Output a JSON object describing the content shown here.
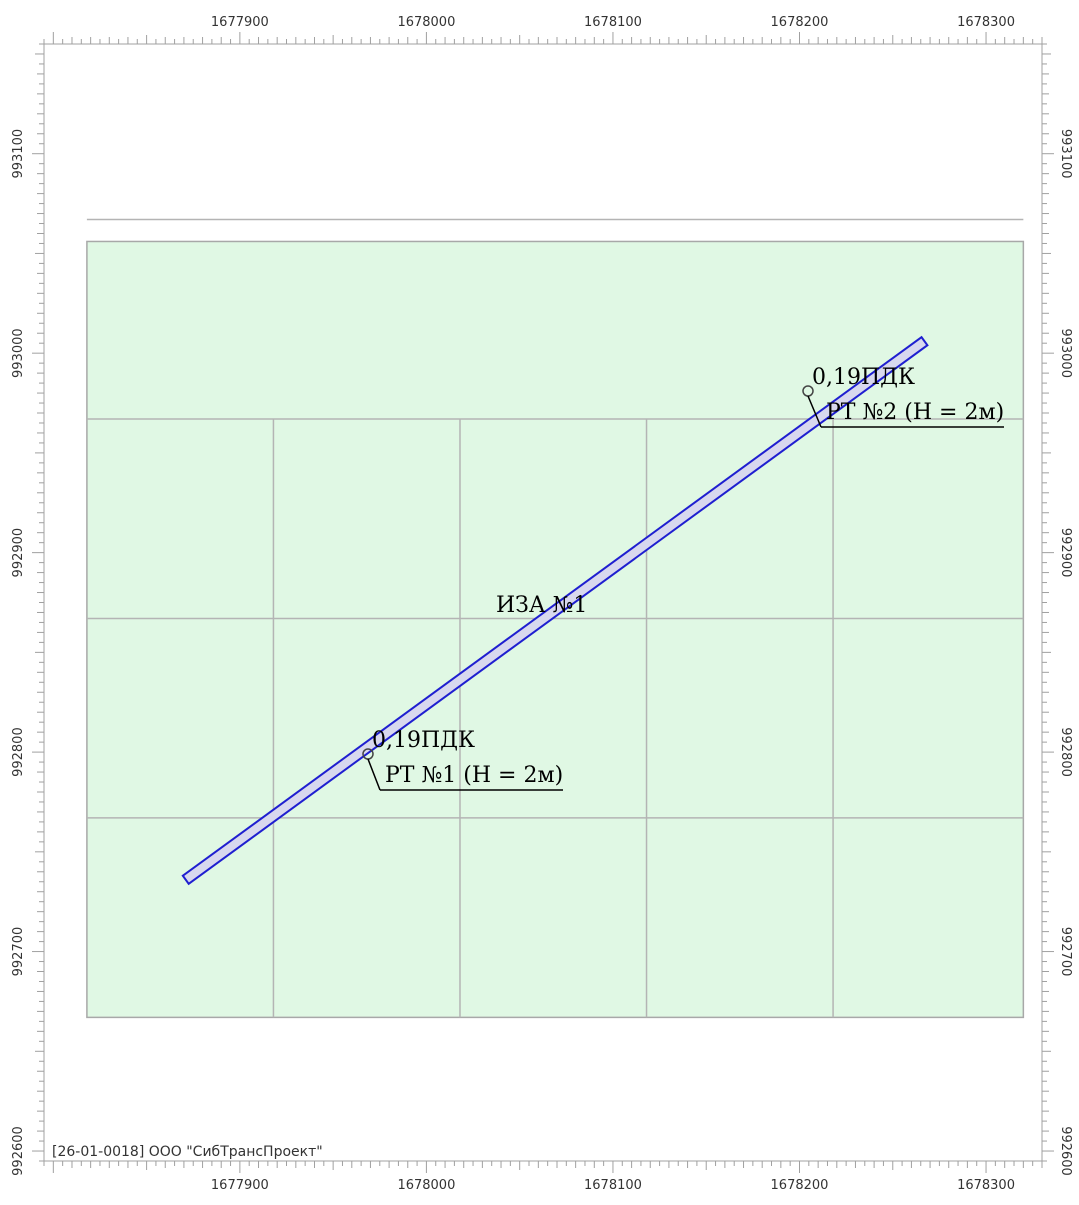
{
  "map": {
    "x_range": [
      1677795,
      1678330
    ],
    "y_range": [
      992595,
      993155
    ],
    "x_ticks": [
      {
        "value": 1677900,
        "label": "1677900"
      },
      {
        "value": 1678000,
        "label": "1678000"
      },
      {
        "value": 1678100,
        "label": "1678100"
      },
      {
        "value": 1678200,
        "label": "1678200"
      },
      {
        "value": 1678300,
        "label": "1678300"
      }
    ],
    "y_ticks": [
      {
        "value": 993100,
        "label": "993100"
      },
      {
        "value": 993000,
        "label": "993000"
      },
      {
        "value": 992900,
        "label": "992900"
      },
      {
        "value": 992800,
        "label": "992800"
      },
      {
        "value": 992700,
        "label": "992700"
      },
      {
        "value": 992600,
        "label": "992600"
      }
    ],
    "calc_area": {
      "x_min": 1677818,
      "x_max": 1678320,
      "y_min": 992667,
      "y_max": 993056,
      "grid_x": [
        1677918,
        1678018,
        1678118,
        1678218
      ],
      "grid_y": [
        992967,
        992867,
        992767
      ]
    },
    "source": {
      "label": "ИЗА №1",
      "label_point": [
        1678057,
        992862
      ],
      "start": [
        1677871,
        992736
      ],
      "end": [
        1678267,
        993006
      ],
      "half_width": 2.5
    },
    "points": [
      {
        "id": 1,
        "value_label": "0,19ПДК",
        "name_label": "РТ №1 (H = 2м)",
        "point": [
          1677777.5,
          992785.5
        ],
        "label_point": [
          1677778,
          992799
        ]
      },
      {
        "id": 2,
        "value_label": "0,19ПДК",
        "name_label": "РТ №2 (H = 2м)",
        "point": [
          1678000.5,
          992971.5
        ],
        "label_point": [
          1678001,
          992985
        ]
      }
    ],
    "footer": "[26-01-0018] ООО \"СибТрансПроект\"",
    "colors": {
      "calc_area_fill": "#e0f8e4",
      "calc_area_stroke": "#a8a8a8",
      "grid": "#b4b4b4",
      "source_stroke": "#1f1fd0",
      "source_fill": "#d8d8ee",
      "ruler": "#a0a0a0"
    }
  }
}
